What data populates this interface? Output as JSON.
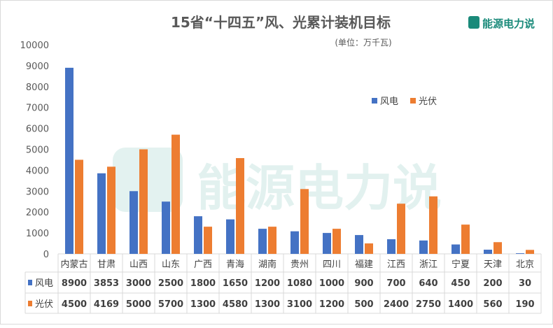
{
  "chart_data": {
    "type": "bar",
    "title": "15省“十四五”风、光累计装机目标",
    "subtitle": "(单位：万千瓦)",
    "categories": [
      "内蒙古",
      "甘肃",
      "山西",
      "山东",
      "广西",
      "青海",
      "湖南",
      "贵州",
      "四川",
      "福建",
      "江西",
      "浙江",
      "宁夏",
      "天津",
      "北京"
    ],
    "series": [
      {
        "name": "风电",
        "color": "#4472C4",
        "values": [
          8900,
          3853,
          3000,
          2500,
          1800,
          1650,
          1200,
          1080,
          1000,
          900,
          700,
          640,
          450,
          200,
          30
        ]
      },
      {
        "name": "光伏",
        "color": "#ED7D31",
        "values": [
          4500,
          4169,
          5000,
          5700,
          1300,
          4580,
          1300,
          3100,
          1200,
          500,
          2400,
          2750,
          1400,
          560,
          190
        ]
      }
    ],
    "ylim": [
      0,
      10000
    ],
    "yticks": [
      0,
      1000,
      2000,
      3000,
      4000,
      5000,
      6000,
      7000,
      8000,
      9000,
      10000
    ],
    "grid": false,
    "legend": "right",
    "data_table": true
  },
  "logo": {
    "text": "能源电力说",
    "color": "#1a8a7a"
  },
  "watermark": {
    "text": "能源电力说"
  }
}
